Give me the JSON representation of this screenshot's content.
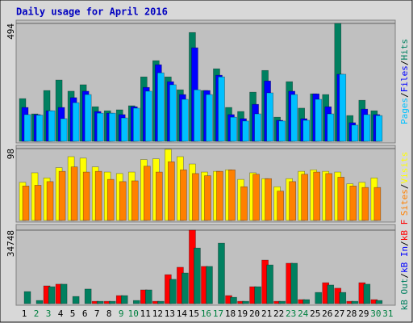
{
  "title": "Daily usage for April 2016",
  "separator": "/",
  "categories": [
    "1",
    "2",
    "3",
    "4",
    "5",
    "6",
    "7",
    "8",
    "9",
    "10",
    "11",
    "12",
    "13",
    "14",
    "15",
    "16",
    "17",
    "18",
    "19",
    "20",
    "21",
    "22",
    "23",
    "24",
    "25",
    "26",
    "27",
    "28",
    "29",
    "30",
    "31"
  ],
  "category_colors": [
    "#000",
    "#008040",
    "#008040",
    "#000",
    "#000",
    "#000",
    "#000",
    "#000",
    "#008040",
    "#008040",
    "#000",
    "#000",
    "#000",
    "#000",
    "#000",
    "#008040",
    "#008040",
    "#000",
    "#000",
    "#000",
    "#000",
    "#000",
    "#008040",
    "#008040",
    "#000",
    "#000",
    "#000",
    "#000",
    "#000",
    "#008040",
    "#008040"
  ],
  "chart_data": [
    {
      "type": "bar",
      "ylim": [
        0,
        494
      ],
      "yticks": [
        494
      ],
      "series": [
        {
          "name": "Hits",
          "color": "#008060",
          "values": [
            179,
            115,
            213,
            257,
            210,
            237,
            145,
            128,
            132,
            149,
            270,
            338,
            270,
            216,
            456,
            213,
            304,
            142,
            125,
            206,
            297,
            101,
            250,
            139,
            199,
            196,
            494,
            108,
            172,
            128,
            0
          ]
        },
        {
          "name": "Files",
          "color": "#0000ff",
          "values": [
            142,
            112,
            128,
            142,
            183,
            210,
            125,
            118,
            112,
            145,
            226,
            321,
            250,
            196,
            392,
            213,
            277,
            112,
            95,
            155,
            253,
            88,
            210,
            95,
            199,
            145,
            281,
            78,
            135,
            112,
            0
          ]
        },
        {
          "name": "Pages",
          "color": "#00c0ff",
          "values": [
            112,
            110,
            128,
            95,
            162,
            196,
            118,
            118,
            98,
            139,
            210,
            287,
            237,
            176,
            216,
            196,
            270,
            101,
            85,
            115,
            203,
            85,
            196,
            88,
            176,
            115,
            281,
            68,
            112,
            108,
            0
          ]
        }
      ]
    },
    {
      "type": "bar",
      "ylim": [
        0,
        98
      ],
      "yticks": [
        98
      ],
      "series": [
        {
          "name": "Visits",
          "color": "#ffff00",
          "values": [
            52,
            65,
            58,
            72,
            87,
            85,
            73,
            66,
            64,
            66,
            83,
            84,
            97,
            87,
            77,
            66,
            67,
            69,
            56,
            65,
            57,
            46,
            57,
            67,
            69,
            67,
            66,
            50,
            52,
            58,
            0
          ]
        },
        {
          "name": "Sites",
          "color": "#ff8000",
          "values": [
            47,
            48,
            53,
            67,
            73,
            66,
            67,
            56,
            53,
            54,
            74,
            66,
            80,
            69,
            64,
            61,
            67,
            69,
            46,
            63,
            57,
            40,
            53,
            63,
            66,
            64,
            59,
            47,
            45,
            45,
            0
          ]
        }
      ]
    },
    {
      "type": "bar",
      "ylim": [
        0,
        34748
      ],
      "yticks": [
        34748
      ],
      "series": [
        {
          "name": "kB F",
          "color": "#ff0000",
          "values": [
            0,
            0,
            8400,
            9200,
            0,
            0,
            1100,
            1100,
            3800,
            0,
            6500,
            1100,
            13700,
            17200,
            34748,
            17600,
            0,
            3800,
            1100,
            8000,
            20600,
            1100,
            19100,
            1900,
            0,
            9900,
            7300,
            1100,
            9900,
            1900,
            0
          ]
        },
        {
          "name": "kB In",
          "color": "#0000ff",
          "values": [
            0,
            0,
            0,
            0,
            0,
            0,
            0,
            0,
            0,
            0,
            0,
            0,
            0,
            0,
            0,
            0,
            0,
            0,
            0,
            0,
            0,
            0,
            0,
            0,
            0,
            0,
            0,
            0,
            0,
            0,
            0
          ]
        },
        {
          "name": "kB Out",
          "color": "#008060",
          "values": [
            5700,
            1500,
            8000,
            9200,
            3400,
            6900,
            1100,
            1100,
            3800,
            1500,
            6500,
            1100,
            11500,
            14500,
            26300,
            17600,
            28600,
            3000,
            1100,
            8000,
            18300,
            1100,
            19100,
            1900,
            5300,
            8800,
            5300,
            1100,
            9200,
            1500,
            0
          ]
        }
      ]
    }
  ]
}
